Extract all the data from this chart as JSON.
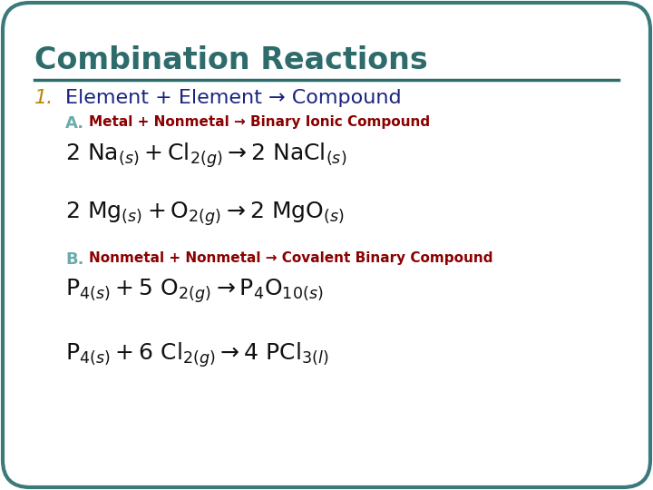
{
  "title": "Combination Reactions",
  "title_color": "#2E6B6B",
  "title_fontsize": 24,
  "background_color": "#FFFFFF",
  "border_color": "#3A7A7A",
  "line_color": "#2E6B6B",
  "item1_label": "1.",
  "item1_label_color": "#B8860B",
  "item1_text": "Element + Element → Compound",
  "item1_color": "#1A237E",
  "item1_fontsize": 16,
  "itemA_label": "A.",
  "itemA_label_color": "#6AACAC",
  "itemA_text": "Metal + Nonmetal → Binary Ionic Compound",
  "itemA_color": "#8B0000",
  "itemB_label": "B.",
  "itemB_label_color": "#6AACAC",
  "itemB_text": "Nonmetal + Nonmetal → Covalent Binary Compound",
  "itemB_color": "#8B0000",
  "eq_color": "#111111",
  "eq_fontsize": 18,
  "sub_fontsize": 11,
  "label_fontsize": 13
}
